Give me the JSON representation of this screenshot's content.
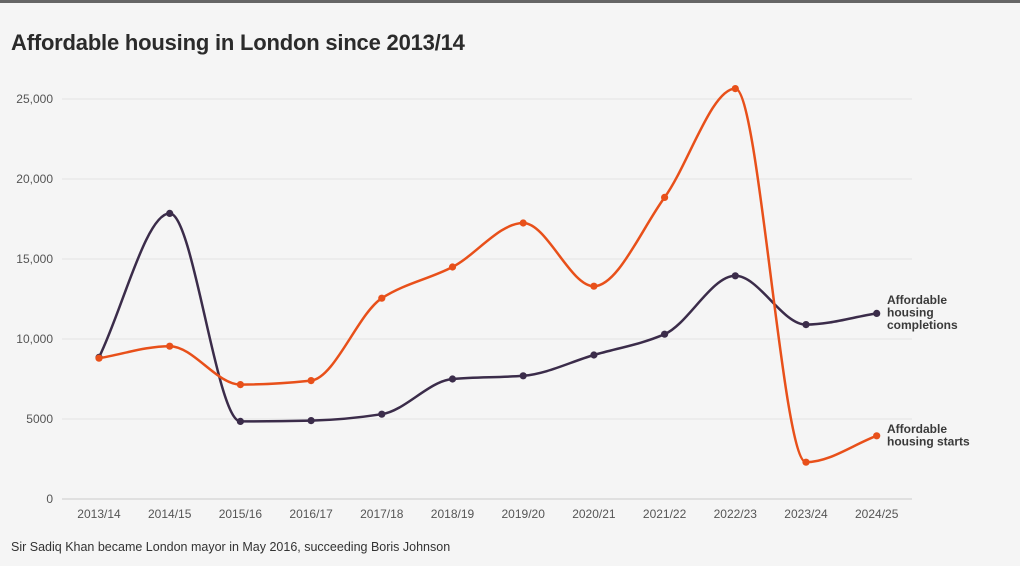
{
  "page": {
    "title": "Affordable housing in London since 2013/14",
    "footnote": "Sir Sadiq Khan became London mayor in May 2016, succeeding Boris Johnson"
  },
  "chart_data": {
    "type": "line",
    "title": "Affordable housing in London since 2013/14",
    "categories": [
      "2013/14",
      "2014/15",
      "2015/16",
      "2016/17",
      "2017/18",
      "2018/19",
      "2019/20",
      "2020/21",
      "2021/22",
      "2022/23",
      "2023/24",
      "2024/25"
    ],
    "ylim": [
      0,
      25000
    ],
    "yticks": [
      0,
      5000,
      10000,
      15000,
      20000,
      25000
    ],
    "ytick_labels": [
      "0",
      "5000",
      "10,000",
      "15,000",
      "20,000",
      "25,000"
    ],
    "grid": true,
    "legend": "end-of-line labels",
    "series": [
      {
        "name": "Affordable housing completions",
        "label_lines": [
          "Affordable",
          "housing",
          "completions"
        ],
        "color": "#3b2c4a",
        "values": [
          8850,
          17850,
          4850,
          4900,
          5300,
          7500,
          7700,
          9000,
          10300,
          13950,
          10900,
          11600
        ]
      },
      {
        "name": "Affordable housing starts",
        "label_lines": [
          "Affordable",
          "housing starts"
        ],
        "color": "#e8501a",
        "values": [
          8800,
          9550,
          7150,
          7400,
          12550,
          14500,
          17250,
          13300,
          18850,
          25650,
          2300,
          3950
        ]
      }
    ]
  }
}
